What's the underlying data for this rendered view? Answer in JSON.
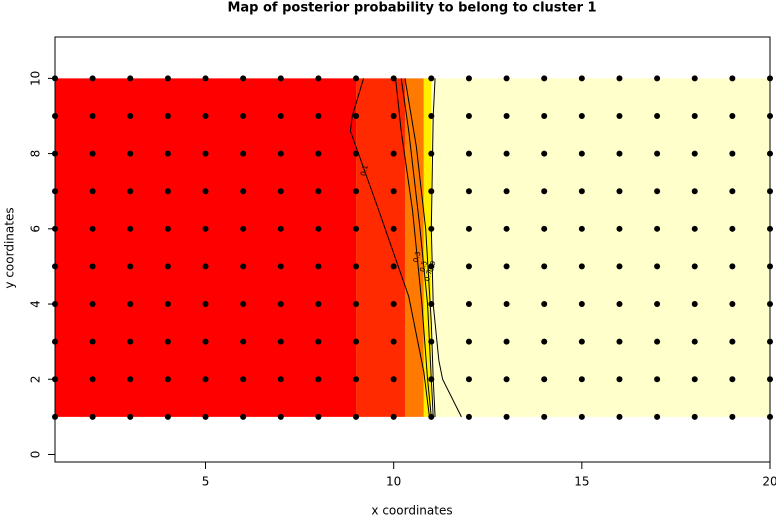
{
  "chart_data": {
    "type": "image-contour",
    "title": "Map of posterior probability to belong to cluster  1",
    "x_label": "x coordinates",
    "y_label": "y coordinates",
    "xlim": [
      1,
      20
    ],
    "ylim": [
      -0.2,
      11.1
    ],
    "xticks": [
      5,
      10,
      15,
      20
    ],
    "yticks": [
      0,
      2,
      4,
      6,
      8,
      10
    ],
    "image_y": [
      1,
      10
    ],
    "image_bands": [
      {
        "x": [
          1,
          9
        ],
        "color": "#ff0000"
      },
      {
        "x": [
          9,
          10.3
        ],
        "color": "#ff2a00"
      },
      {
        "x": [
          10.3,
          10.8
        ],
        "color": "#ff7a00"
      },
      {
        "x": [
          10.8,
          11
        ],
        "color": "#ffee00"
      },
      {
        "x": [
          11,
          20
        ],
        "color": "#ffffcc"
      }
    ],
    "contours": [
      {
        "level": 0.1,
        "x": [
          9.2,
          8.9,
          8.85,
          9.6,
          10.4,
          10.8,
          10.95
        ],
        "y": [
          10,
          9,
          8.6,
          6.5,
          4.2,
          2.2,
          1
        ]
      },
      {
        "level": 0.3,
        "x": [
          10.05,
          10.2,
          10.5,
          10.75,
          10.9,
          11.0
        ],
        "y": [
          10,
          8.6,
          6.5,
          4,
          2,
          1
        ]
      },
      {
        "level": 0.5,
        "x": [
          10.2,
          10.4,
          10.7,
          10.9,
          11.0,
          11.05
        ],
        "y": [
          10,
          8.6,
          6,
          4,
          2,
          1
        ]
      },
      {
        "level": 0.7,
        "x": [
          10.3,
          10.6,
          10.85,
          11.0,
          11.05,
          11.1
        ],
        "y": [
          10,
          8.2,
          6,
          3.5,
          2,
          1
        ]
      },
      {
        "level": 0.9,
        "x": [
          11.1,
          11.05,
          11.0,
          11.05,
          11.2,
          11.3,
          11.8
        ],
        "y": [
          10,
          9,
          6,
          4,
          2.5,
          2,
          1
        ]
      }
    ],
    "points_x": [
      1,
      2,
      3,
      4,
      5,
      6,
      7,
      8,
      9,
      10,
      11,
      12,
      13,
      14,
      15,
      16,
      17,
      18,
      19,
      20
    ],
    "points_y": [
      1,
      2,
      3,
      4,
      5,
      6,
      7,
      8,
      9,
      10
    ],
    "point_color": "#000000"
  }
}
